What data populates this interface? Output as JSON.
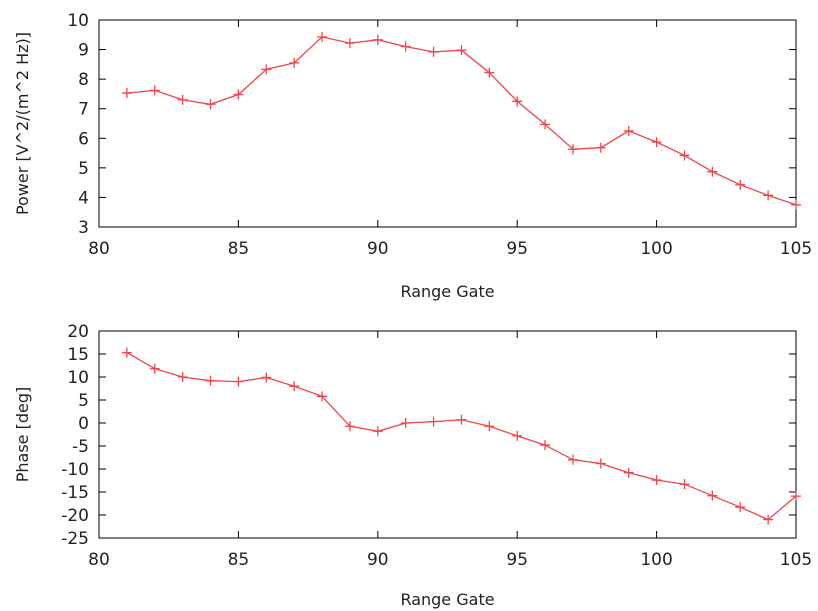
{
  "chart_data": [
    {
      "type": "line",
      "xlabel": "Range Gate",
      "ylabel": "Power [V^2/(m^2 Hz)]",
      "xlim": [
        80,
        105
      ],
      "ylim": [
        3,
        10
      ],
      "x_ticks": [
        80,
        85,
        90,
        95,
        100,
        105
      ],
      "y_ticks": [
        3,
        4,
        5,
        6,
        7,
        8,
        9,
        10
      ],
      "grid": false,
      "marker": "plus",
      "color": "#f0444b",
      "x": [
        81,
        82,
        83,
        84,
        85,
        86,
        87,
        88,
        89,
        90,
        91,
        92,
        93,
        94,
        95,
        96,
        97,
        98,
        99,
        100,
        101,
        102,
        103,
        104,
        105
      ],
      "values": [
        7.53,
        7.62,
        7.3,
        7.15,
        7.48,
        8.33,
        8.55,
        9.43,
        9.22,
        9.33,
        9.1,
        8.92,
        8.98,
        8.22,
        7.25,
        6.47,
        5.63,
        5.68,
        6.25,
        5.87,
        5.42,
        4.87,
        4.43,
        4.07,
        3.75
      ]
    },
    {
      "type": "line",
      "xlabel": "Range Gate",
      "ylabel": "Phase [deg]",
      "xlim": [
        80,
        105
      ],
      "ylim": [
        -25,
        20
      ],
      "x_ticks": [
        80,
        85,
        90,
        95,
        100,
        105
      ],
      "y_ticks": [
        -25,
        -20,
        -15,
        -10,
        -5,
        0,
        5,
        10,
        15,
        20
      ],
      "grid": false,
      "marker": "plus",
      "color": "#f0444b",
      "x": [
        81,
        82,
        83,
        84,
        85,
        86,
        87,
        88,
        89,
        90,
        91,
        92,
        93,
        94,
        95,
        96,
        97,
        98,
        99,
        100,
        101,
        102,
        103,
        104,
        105
      ],
      "values": [
        15.3,
        11.8,
        10.0,
        9.2,
        9.0,
        9.9,
        8.0,
        5.8,
        -0.7,
        -1.8,
        0.0,
        0.3,
        0.7,
        -0.7,
        -2.8,
        -4.8,
        -8.0,
        -8.8,
        -10.8,
        -12.4,
        -13.3,
        -15.8,
        -18.3,
        -21.0,
        -15.9
      ]
    }
  ]
}
